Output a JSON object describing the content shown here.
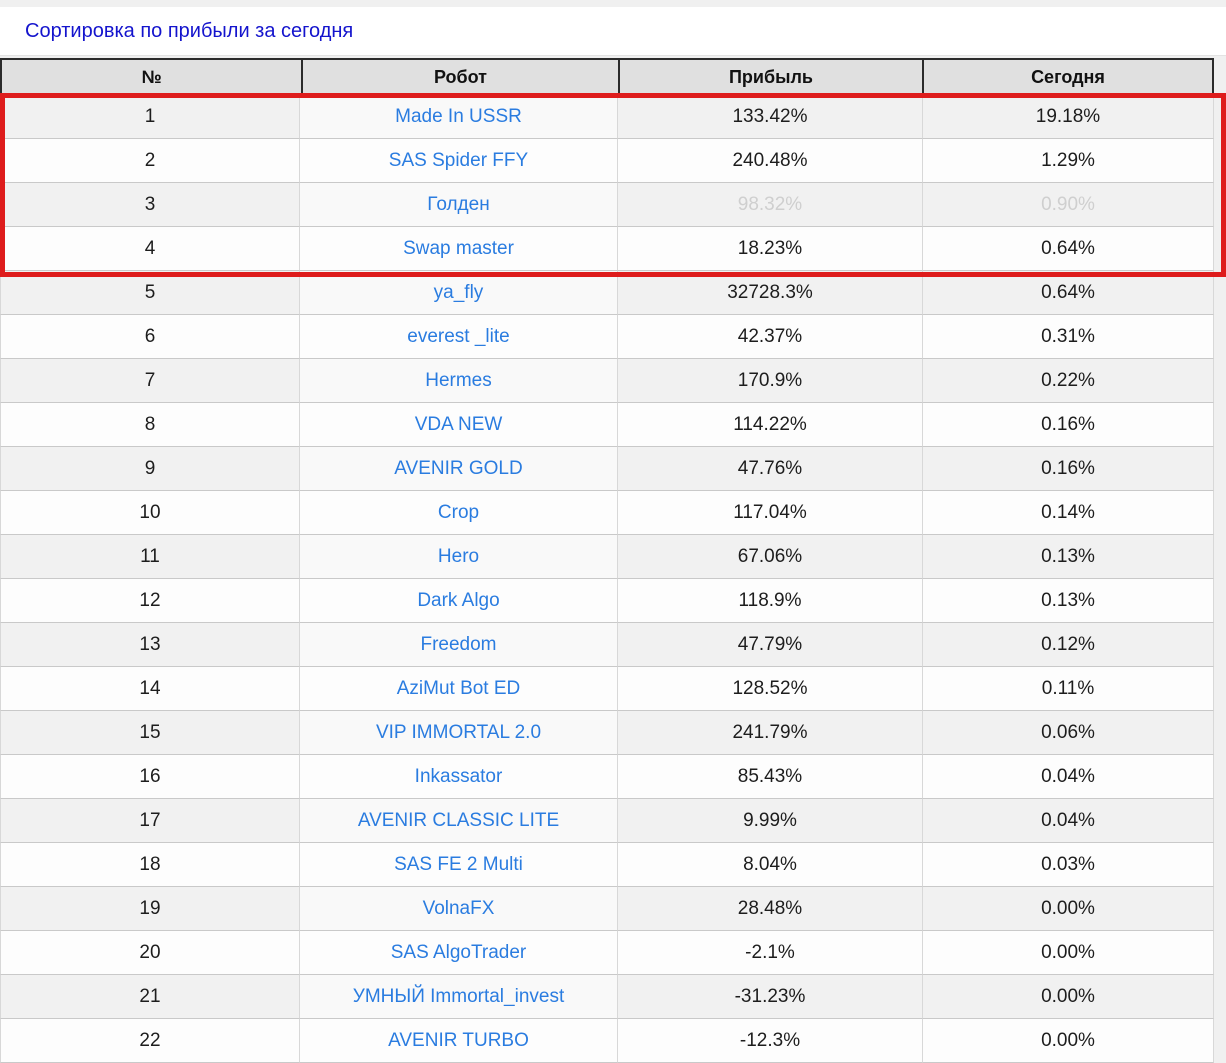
{
  "title": "Сортировка по прибыли за сегодня",
  "colors": {
    "highlight_red": "#de1c1c",
    "link_blue": "#2a7ce0",
    "title_blue": "#1414cd",
    "muted_text": "#cfcfcf",
    "header_bg": "#e0e0e0"
  },
  "table": {
    "headers": [
      "№",
      "Робот",
      "Прибыль",
      "Сегодня"
    ],
    "highlighted_row_numbers": [
      1,
      2,
      3,
      4
    ],
    "rows": [
      {
        "num": "1",
        "robot": "Made In USSR",
        "profit": "133.42%",
        "today": "19.18%",
        "muted": false
      },
      {
        "num": "2",
        "robot": "SAS Spider FFY",
        "profit": "240.48%",
        "today": "1.29%",
        "muted": false
      },
      {
        "num": "3",
        "robot": "Голден",
        "profit": "98.32%",
        "today": "0.90%",
        "muted": true
      },
      {
        "num": "4",
        "robot": "Swap master",
        "profit": "18.23%",
        "today": "0.64%",
        "muted": false
      },
      {
        "num": "5",
        "robot": "ya_fly",
        "profit": "32728.3%",
        "today": "0.64%",
        "muted": false
      },
      {
        "num": "6",
        "robot": "everest _lite",
        "profit": "42.37%",
        "today": "0.31%",
        "muted": false
      },
      {
        "num": "7",
        "robot": "Hermes",
        "profit": "170.9%",
        "today": "0.22%",
        "muted": false
      },
      {
        "num": "8",
        "robot": "VDA NEW",
        "profit": "114.22%",
        "today": "0.16%",
        "muted": false
      },
      {
        "num": "9",
        "robot": "AVENIR GOLD",
        "profit": "47.76%",
        "today": "0.16%",
        "muted": false
      },
      {
        "num": "10",
        "robot": "Crop",
        "profit": "117.04%",
        "today": "0.14%",
        "muted": false
      },
      {
        "num": "11",
        "robot": "Hero",
        "profit": "67.06%",
        "today": "0.13%",
        "muted": false
      },
      {
        "num": "12",
        "robot": "Dark Algo",
        "profit": "118.9%",
        "today": "0.13%",
        "muted": false
      },
      {
        "num": "13",
        "robot": "Freedom",
        "profit": "47.79%",
        "today": "0.12%",
        "muted": false
      },
      {
        "num": "14",
        "robot": "AziMut Bot ED",
        "profit": "128.52%",
        "today": "0.11%",
        "muted": false
      },
      {
        "num": "15",
        "robot": "VIP IMMORTAL 2.0",
        "profit": "241.79%",
        "today": "0.06%",
        "muted": false
      },
      {
        "num": "16",
        "robot": "Inkassator",
        "profit": "85.43%",
        "today": "0.04%",
        "muted": false
      },
      {
        "num": "17",
        "robot": "AVENIR CLASSIC LITE",
        "profit": "9.99%",
        "today": "0.04%",
        "muted": false
      },
      {
        "num": "18",
        "robot": "SAS FE 2 Multi",
        "profit": "8.04%",
        "today": "0.03%",
        "muted": false
      },
      {
        "num": "19",
        "robot": "VolnaFX",
        "profit": "28.48%",
        "today": "0.00%",
        "muted": false
      },
      {
        "num": "20",
        "robot": "SAS AlgoTrader",
        "profit": "-2.1%",
        "today": "0.00%",
        "muted": false
      },
      {
        "num": "21",
        "robot": "УМНЫЙ Immortal_invest",
        "profit": "-31.23%",
        "today": "0.00%",
        "muted": false
      },
      {
        "num": "22",
        "robot": "AVENIR TURBO",
        "profit": "-12.3%",
        "today": "0.00%",
        "muted": false
      }
    ]
  }
}
